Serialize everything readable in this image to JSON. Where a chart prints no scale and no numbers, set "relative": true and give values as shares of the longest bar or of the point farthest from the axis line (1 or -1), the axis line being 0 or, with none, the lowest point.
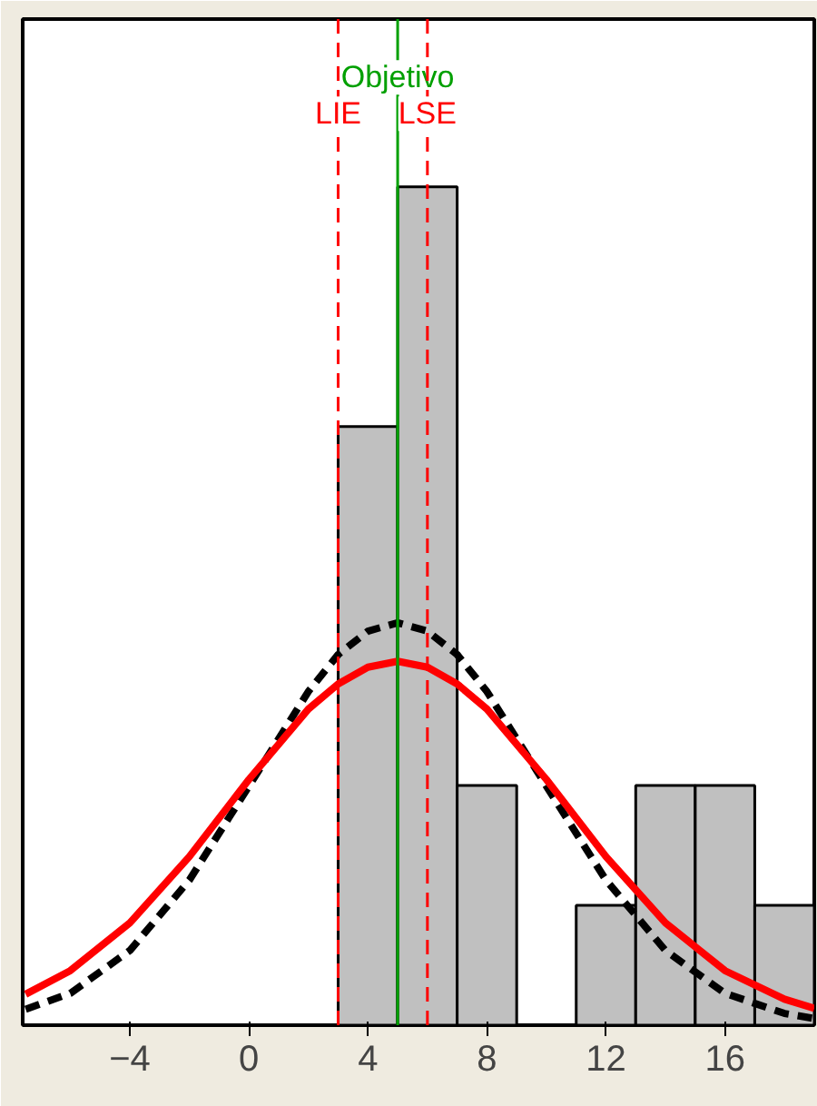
{
  "chart_data": {
    "type": "histogram",
    "relative": true,
    "bins": [
      3,
      5,
      7,
      9,
      11,
      13,
      15,
      17,
      19
    ],
    "values": [
      0.714,
      1,
      0.286,
      0,
      0.143,
      0.286,
      0.286,
      0.143
    ],
    "color": "#c0c0c0",
    "series": [
      {
        "type": "line",
        "color": "#000000",
        "line_style": "dashed",
        "x": [
          -7.5,
          -6,
          -4,
          -2,
          0,
          2,
          3,
          4,
          5,
          6,
          7,
          8,
          10,
          12,
          14,
          16,
          18,
          19
        ],
        "values": [
          0.019,
          0.038,
          0.089,
          0.173,
          0.285,
          0.398,
          0.442,
          0.47,
          0.48,
          0.47,
          0.442,
          0.398,
          0.285,
          0.173,
          0.089,
          0.038,
          0.014,
          0.008
        ]
      },
      {
        "type": "line",
        "color": "#ff0000",
        "line_style": "solid",
        "x": [
          -7.5,
          -6,
          -4,
          -2,
          0,
          2,
          3,
          4,
          5,
          6,
          7,
          8,
          10,
          12,
          14,
          16,
          18,
          19
        ],
        "values": [
          0.037,
          0.065,
          0.122,
          0.201,
          0.293,
          0.377,
          0.407,
          0.427,
          0.434,
          0.427,
          0.407,
          0.377,
          0.293,
          0.201,
          0.122,
          0.065,
          0.031,
          0.02
        ]
      }
    ],
    "xlim": [
      -7.6,
      19
    ],
    "xticks": [
      -4,
      0,
      4,
      8,
      12,
      16
    ],
    "ref_lines": [
      {
        "axis": "x",
        "value": 3,
        "label": "LIE",
        "color": "#ff0000",
        "line_style": "dashed"
      },
      {
        "axis": "x",
        "value": 5,
        "label": "Objetivo",
        "color": "#00a000",
        "line_style": "solid"
      },
      {
        "axis": "x",
        "value": 6,
        "label": "LSE",
        "color": "#ff0000",
        "line_style": "dashed"
      }
    ],
    "grid": false
  }
}
